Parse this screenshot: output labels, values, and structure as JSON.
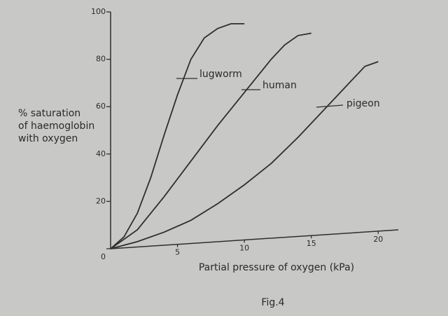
{
  "chart_data": {
    "type": "line",
    "ylabel": [
      "% saturation",
      "of haemoglobin",
      "with oxygen"
    ],
    "xlabel": "Partial pressure of oxygen (kPa)",
    "caption": "Fig.4",
    "xlim": [
      0,
      21.5
    ],
    "ylim": [
      0,
      100
    ],
    "xticks": [
      5,
      10,
      15,
      20
    ],
    "yticks": [
      0,
      20,
      40,
      60,
      80,
      100
    ],
    "series": [
      {
        "name": "lugworm",
        "color": "#2e2e2e",
        "x": [
          0,
          1,
          2,
          3,
          4,
          5,
          6,
          7,
          8,
          9,
          10
        ],
        "values": [
          0,
          5,
          15,
          30,
          48,
          65,
          80,
          89,
          93,
          95,
          95
        ]
      },
      {
        "name": "human",
        "color": "#2e2e2e",
        "x": [
          0,
          2,
          4,
          6,
          8,
          10,
          12,
          13,
          14,
          15
        ],
        "values": [
          0,
          8,
          22,
          37,
          52,
          66,
          80,
          86,
          90,
          91
        ]
      },
      {
        "name": "pigeon",
        "color": "#2e2e2e",
        "x": [
          0,
          2,
          4,
          6,
          8,
          10,
          12,
          14,
          16,
          18,
          19,
          20
        ],
        "values": [
          0,
          3,
          7,
          12,
          19,
          27,
          36,
          47,
          59,
          71,
          77,
          79
        ]
      }
    ]
  }
}
